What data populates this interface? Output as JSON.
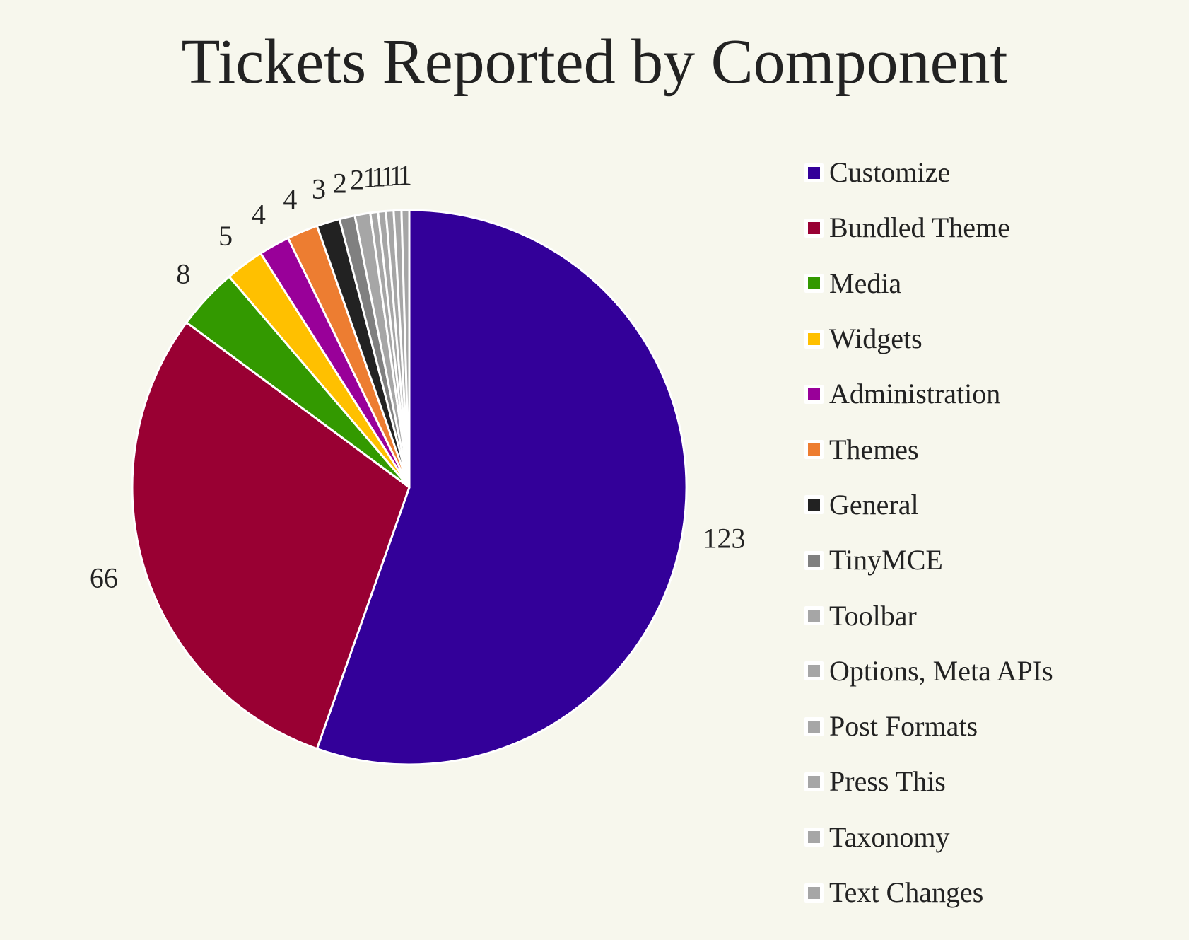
{
  "chart_data": {
    "type": "pie",
    "title": "Tickets Reported by Component",
    "categories": [
      "Customize",
      "Bundled Theme",
      "Media",
      "Widgets",
      "Administration",
      "Themes",
      "General",
      "TinyMCE",
      "Toolbar",
      "Options, Meta APIs",
      "Post Formats",
      "Press This",
      "Taxonomy",
      "Text Changes"
    ],
    "values": [
      123,
      66,
      8,
      5,
      4,
      4,
      3,
      2,
      2,
      1,
      1,
      1,
      1,
      1
    ],
    "colors": [
      "#330099",
      "#990033",
      "#339900",
      "#ffc000",
      "#990099",
      "#ed7d31",
      "#222222",
      "#808080",
      "#a6a6a6",
      "#a6a6a6",
      "#a6a6a6",
      "#a6a6a6",
      "#a6a6a6",
      "#a6a6a6"
    ],
    "start_angle_deg": 90,
    "direction": "clockwise",
    "data_labels": [
      "123",
      "66",
      "8",
      "5",
      "4",
      "4",
      "3",
      "2",
      "2",
      "1",
      "1",
      "1",
      "1",
      "1"
    ],
    "legend_position": "right"
  },
  "title": "Tickets Reported by Component",
  "legend": [
    {
      "label": "Customize",
      "color": "#330099"
    },
    {
      "label": "Bundled Theme",
      "color": "#990033"
    },
    {
      "label": "Media",
      "color": "#339900"
    },
    {
      "label": "Widgets",
      "color": "#ffc000"
    },
    {
      "label": "Administration",
      "color": "#990099"
    },
    {
      "label": "Themes",
      "color": "#ed7d31"
    },
    {
      "label": "General",
      "color": "#222222"
    },
    {
      "label": "TinyMCE",
      "color": "#808080"
    },
    {
      "label": "Toolbar",
      "color": "#a6a6a6"
    },
    {
      "label": "Options, Meta APIs",
      "color": "#a6a6a6"
    },
    {
      "label": "Post Formats",
      "color": "#a6a6a6"
    },
    {
      "label": "Press This",
      "color": "#a6a6a6"
    },
    {
      "label": "Taxonomy",
      "color": "#a6a6a6"
    },
    {
      "label": "Text Changes",
      "color": "#a6a6a6"
    }
  ]
}
